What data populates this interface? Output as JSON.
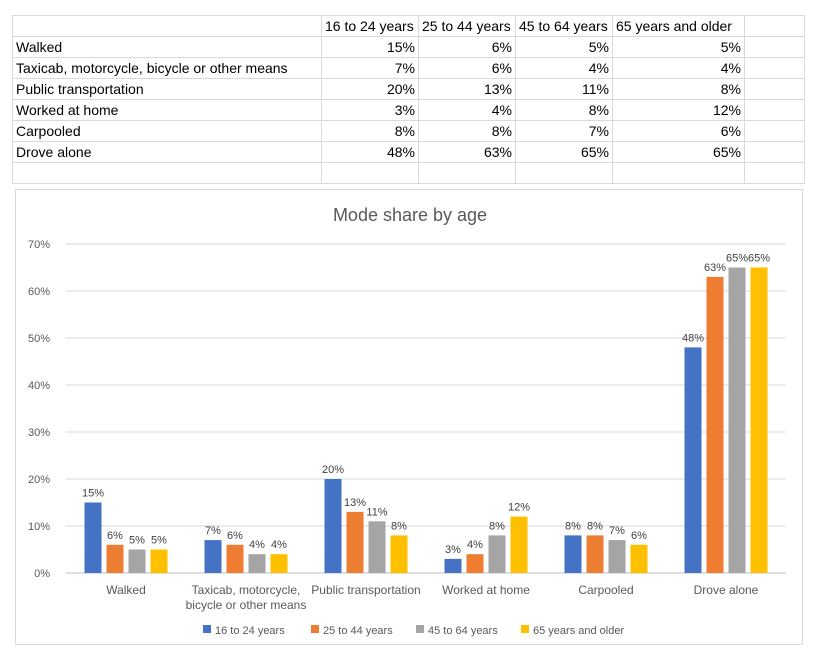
{
  "table": {
    "headers": [
      "",
      "16 to 24 years",
      "25 to 44 years",
      "45 to 64 years",
      "65 years and older"
    ],
    "rows": [
      [
        "Walked",
        "15%",
        "6%",
        "5%",
        "5%"
      ],
      [
        "Taxicab, motorcycle, bicycle or other means",
        "7%",
        "6%",
        "4%",
        "4%"
      ],
      [
        "Public transportation",
        "20%",
        "13%",
        "11%",
        "8%"
      ],
      [
        "Worked at home",
        "3%",
        "4%",
        "8%",
        "12%"
      ],
      [
        "Carpooled",
        "8%",
        "8%",
        "7%",
        "6%"
      ],
      [
        "Drove alone",
        "48%",
        "63%",
        "65%",
        "65%"
      ]
    ]
  },
  "chart_data": {
    "type": "bar",
    "title": "Mode share by age",
    "xlabel": "",
    "ylabel": "",
    "categories": [
      "Walked",
      "Taxicab, motorcycle, bicycle or other means",
      "Public transportation",
      "Worked at home",
      "Carpooled",
      "Drove alone"
    ],
    "category_lines": [
      [
        "Walked"
      ],
      [
        "Taxicab, motorcycle,",
        "bicycle or other means"
      ],
      [
        "Public transportation"
      ],
      [
        "Worked at home"
      ],
      [
        "Carpooled"
      ],
      [
        "Drove alone"
      ]
    ],
    "series": [
      {
        "name": "16 to 24 years",
        "color": "#4472C4",
        "values": [
          15,
          7,
          20,
          3,
          8,
          48
        ]
      },
      {
        "name": "25 to 44 years",
        "color": "#ED7D31",
        "values": [
          6,
          6,
          13,
          4,
          8,
          63
        ]
      },
      {
        "name": "45 to 64 years",
        "color": "#A5A5A5",
        "values": [
          5,
          4,
          11,
          8,
          7,
          65
        ]
      },
      {
        "name": "65 years and older",
        "color": "#FFC000",
        "values": [
          5,
          4,
          8,
          12,
          6,
          65
        ]
      }
    ],
    "ylim": [
      0,
      70
    ],
    "yticks": [
      0,
      10,
      20,
      30,
      40,
      50,
      60,
      70
    ],
    "value_format": "percent",
    "grid": true,
    "legend": "bottom"
  }
}
